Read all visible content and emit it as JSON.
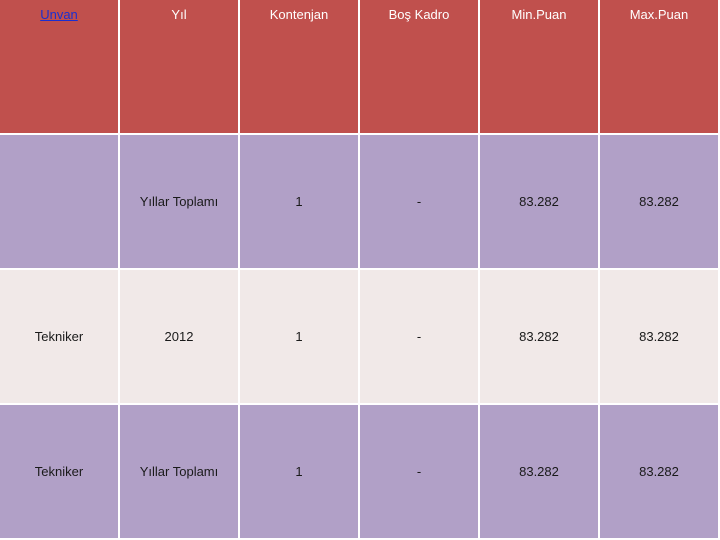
{
  "table": {
    "headers": [
      "Unvan",
      "Yıl",
      "Kontenjan",
      "Boş Kadro",
      "Min.Puan",
      "Max.Puan"
    ],
    "rows": [
      [
        "",
        "Yıllar Toplamı",
        "1",
        "-",
        "83.282",
        "83.282"
      ],
      [
        "Tekniker",
        "2012",
        "1",
        "-",
        "83.282",
        "83.282"
      ],
      [
        "Tekniker",
        "Yıllar Toplamı",
        "1",
        "-",
        "83.282",
        "83.282"
      ]
    ]
  },
  "colors": {
    "header_bg": "#c0504d",
    "odd_row_bg": "#b1a0c7",
    "even_row_bg": "#f1e9e8",
    "link": "#1a2fd0"
  }
}
